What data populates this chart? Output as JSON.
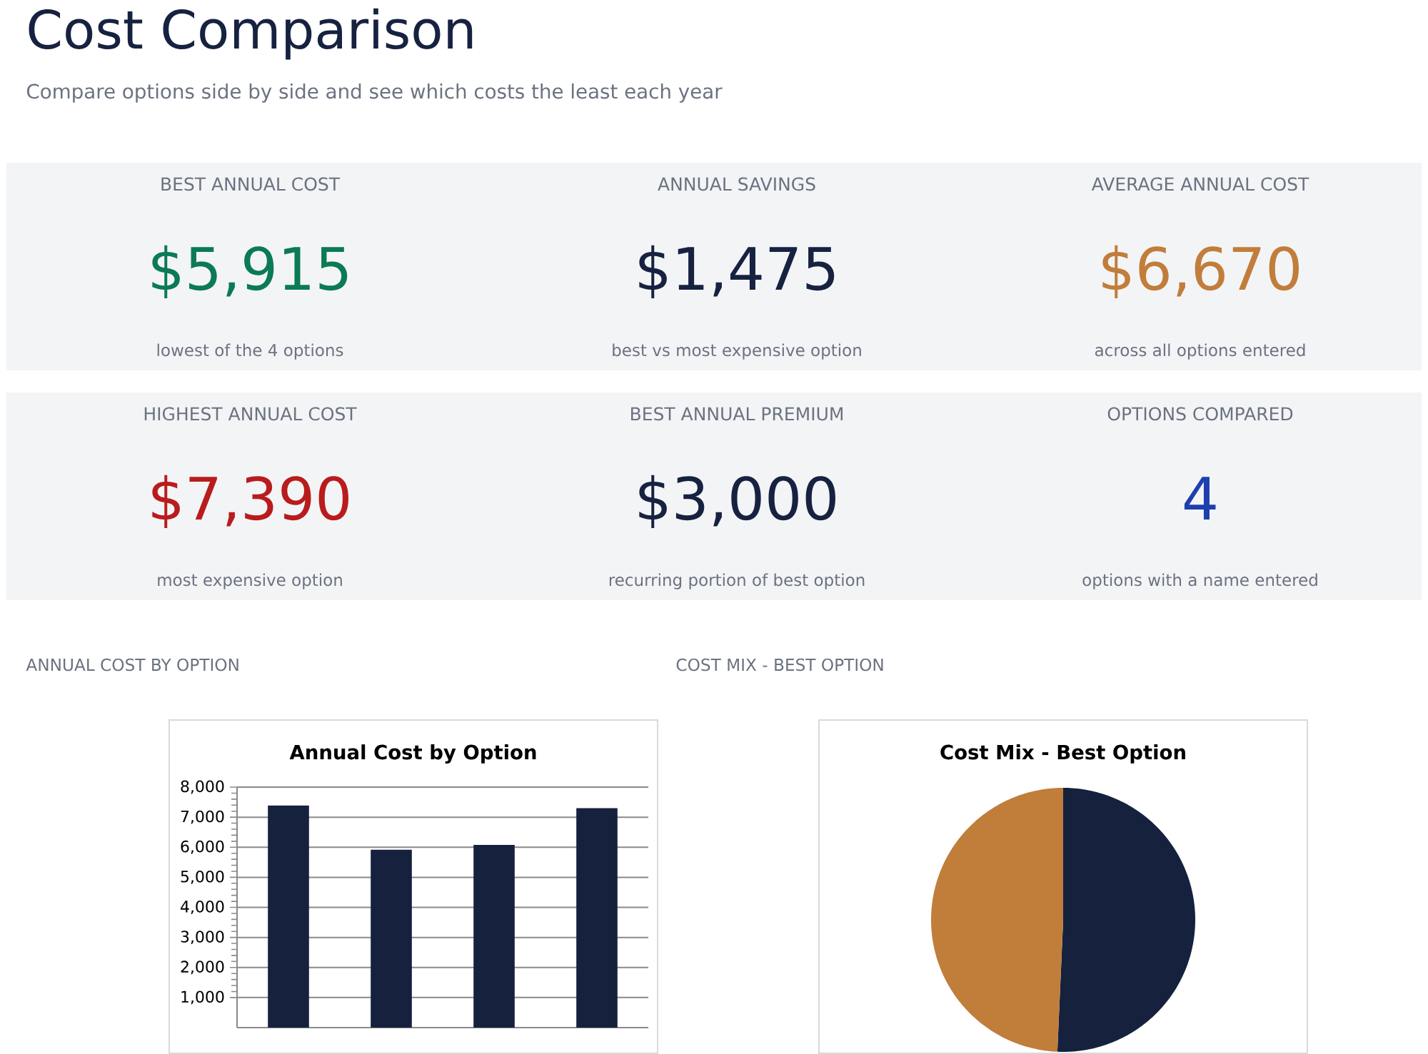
{
  "chart_data": [
    {
      "type": "other",
      "title": "Cost Comparison",
      "subtitle": "Compare options side by side and see which costs the least each year",
      "categories": [
        "BEST ANNUAL COST",
        "ANNUAL SAVINGS",
        "AVERAGE ANNUAL COST",
        "HIGHEST ANNUAL COST",
        "BEST ANNUAL PREMIUM",
        "OPTIONS COMPARED"
      ],
      "value_labels": [
        "$5,915",
        "$1,475",
        "$6,670",
        "$7,390",
        "$3,000",
        "4"
      ],
      "annotations": [
        "lowest of the 4 options",
        "best vs most expensive option",
        "across all options entered",
        "most expensive option",
        "recurring portion of best option",
        "options with a name entered"
      ]
    },
    {
      "type": "bar",
      "title": "Annual Cost by Option",
      "annotations": [
        "ANNUAL COST BY OPTION"
      ],
      "categories": [
        null,
        null,
        null,
        null
      ],
      "values": [
        7390,
        5915,
        6080,
        7300
      ],
      "color": "#16213e",
      "ylim": [
        0,
        8000
      ],
      "yticks": [
        {
          "value": 1000,
          "label": "1,000"
        },
        {
          "value": 2000,
          "label": "2,000"
        },
        {
          "value": 3000,
          "label": "3,000"
        },
        {
          "value": 4000,
          "label": "4,000"
        },
        {
          "value": 5000,
          "label": "5,000"
        },
        {
          "value": 6000,
          "label": "6,000"
        },
        {
          "value": 7000,
          "label": "7,000"
        },
        {
          "value": 8000,
          "label": "8,000"
        }
      ],
      "grid": "y"
    },
    {
      "type": "pie",
      "title": "Cost Mix - Best Option",
      "annotations": [
        "COST MIX - BEST OPTION"
      ],
      "categories": [
        null,
        null
      ],
      "values": [
        50.7,
        49.3
      ],
      "colors": [
        "#16213e",
        "#c17d3a"
      ]
    }
  ]
}
